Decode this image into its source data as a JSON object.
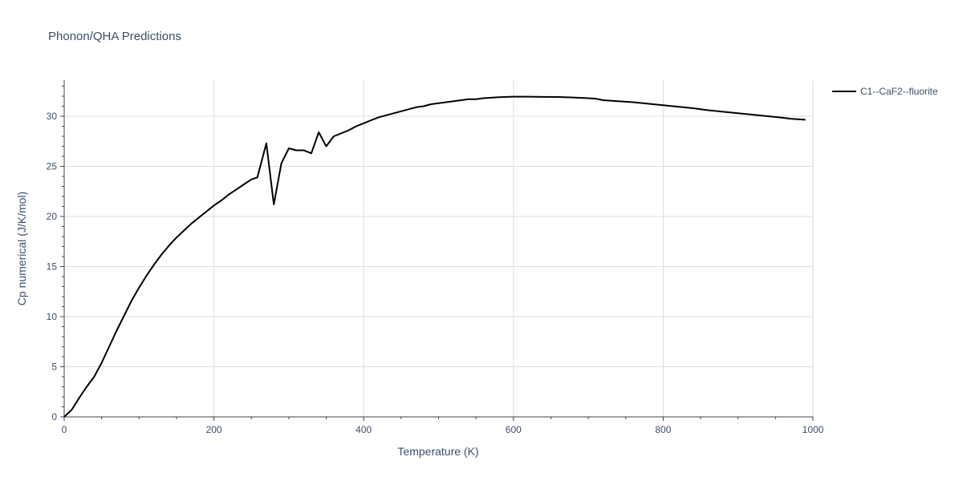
{
  "chart_data": {
    "type": "line",
    "title": "Phonon/QHA Predictions",
    "xlabel": "Temperature (K)",
    "ylabel": "Cp numerical (J/K/mol)",
    "xlim": [
      0,
      1000
    ],
    "ylim": [
      0,
      33.6
    ],
    "xticks": [
      0,
      200,
      400,
      600,
      800,
      1000
    ],
    "yticks": [
      0,
      5,
      10,
      15,
      20,
      25,
      30
    ],
    "grid": true,
    "legend_position": "top-right",
    "series": [
      {
        "name": "C1--CaF2--fluorite",
        "color": "#000000",
        "x": [
          0,
          10,
          20,
          30,
          40,
          50,
          60,
          70,
          80,
          90,
          100,
          110,
          120,
          130,
          140,
          150,
          160,
          170,
          180,
          190,
          200,
          210,
          220,
          230,
          240,
          250,
          258,
          270,
          280,
          290,
          300,
          310,
          320,
          330,
          340,
          350,
          360,
          370,
          380,
          390,
          400,
          410,
          420,
          430,
          440,
          450,
          460,
          470,
          480,
          490,
          500,
          520,
          540,
          550,
          560,
          570,
          580,
          600,
          610,
          620,
          640,
          660,
          680,
          700,
          710,
          720,
          740,
          760,
          780,
          800,
          820,
          840,
          860,
          880,
          900,
          920,
          940,
          960,
          970,
          980,
          990
        ],
        "y": [
          0,
          0.7,
          1.9,
          3.0,
          4.0,
          5.4,
          7.0,
          8.6,
          10.1,
          11.6,
          12.9,
          14.1,
          15.2,
          16.2,
          17.1,
          17.9,
          18.6,
          19.3,
          19.9,
          20.5,
          21.1,
          21.6,
          22.2,
          22.7,
          23.2,
          23.7,
          23.9,
          27.3,
          21.2,
          25.3,
          26.8,
          26.6,
          26.6,
          26.3,
          28.4,
          27.0,
          28.0,
          28.3,
          28.6,
          29.0,
          29.3,
          29.6,
          29.9,
          30.1,
          30.3,
          30.5,
          30.7,
          30.9,
          31.0,
          31.2,
          31.3,
          31.5,
          31.7,
          31.7,
          31.8,
          31.85,
          31.9,
          31.95,
          31.95,
          31.95,
          31.93,
          31.92,
          31.87,
          31.8,
          31.75,
          31.6,
          31.5,
          31.4,
          31.25,
          31.1,
          30.95,
          30.8,
          30.6,
          30.45,
          30.3,
          30.15,
          30.0,
          29.85,
          29.75,
          29.7,
          29.65
        ]
      }
    ]
  }
}
